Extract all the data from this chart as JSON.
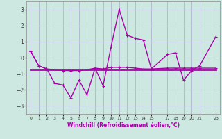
{
  "xlabel": "Windchill (Refroidissement éolien,°C)",
  "bg_color": "#cce8e0",
  "line_color": "#aa00aa",
  "grid_color": "#aaaacc",
  "ylim": [
    -3.5,
    3.5
  ],
  "xlim": [
    -0.5,
    23.5
  ],
  "x_ticks": [
    0,
    1,
    2,
    3,
    4,
    5,
    6,
    7,
    8,
    9,
    10,
    11,
    12,
    13,
    14,
    15,
    17,
    18,
    19,
    20,
    21,
    23
  ],
  "yticks": [
    -3,
    -2,
    -1,
    0,
    1,
    2,
    3
  ],
  "series1_x": [
    0,
    1,
    2,
    3,
    4,
    5,
    6,
    7,
    8,
    9,
    10,
    11,
    12,
    13,
    14,
    15,
    17,
    18,
    19,
    20,
    21,
    23
  ],
  "series1_y": [
    0.4,
    -0.5,
    -0.7,
    -1.6,
    -1.7,
    -2.5,
    -1.4,
    -2.3,
    -0.65,
    -1.75,
    0.7,
    3.0,
    1.4,
    1.2,
    1.1,
    -0.7,
    0.2,
    0.3,
    -1.4,
    -0.8,
    -0.5,
    1.3
  ],
  "series2_x": [
    0,
    1,
    2,
    3,
    4,
    5,
    6,
    7,
    8,
    9,
    10,
    11,
    12,
    13,
    14,
    15,
    17,
    18,
    19,
    20,
    21,
    23
  ],
  "series2_y": [
    0.4,
    -0.5,
    -0.7,
    -0.75,
    -0.8,
    -0.8,
    -0.8,
    -0.75,
    -0.65,
    -0.7,
    -0.6,
    -0.6,
    -0.6,
    -0.65,
    -0.7,
    -0.7,
    -0.65,
    -0.65,
    -0.65,
    -0.65,
    -0.65,
    -0.65
  ],
  "series3_x": [
    0,
    23
  ],
  "series3_y": [
    -0.75,
    -0.75
  ],
  "lw1": 1.0,
  "lw2": 1.0,
  "lw3": 2.0
}
